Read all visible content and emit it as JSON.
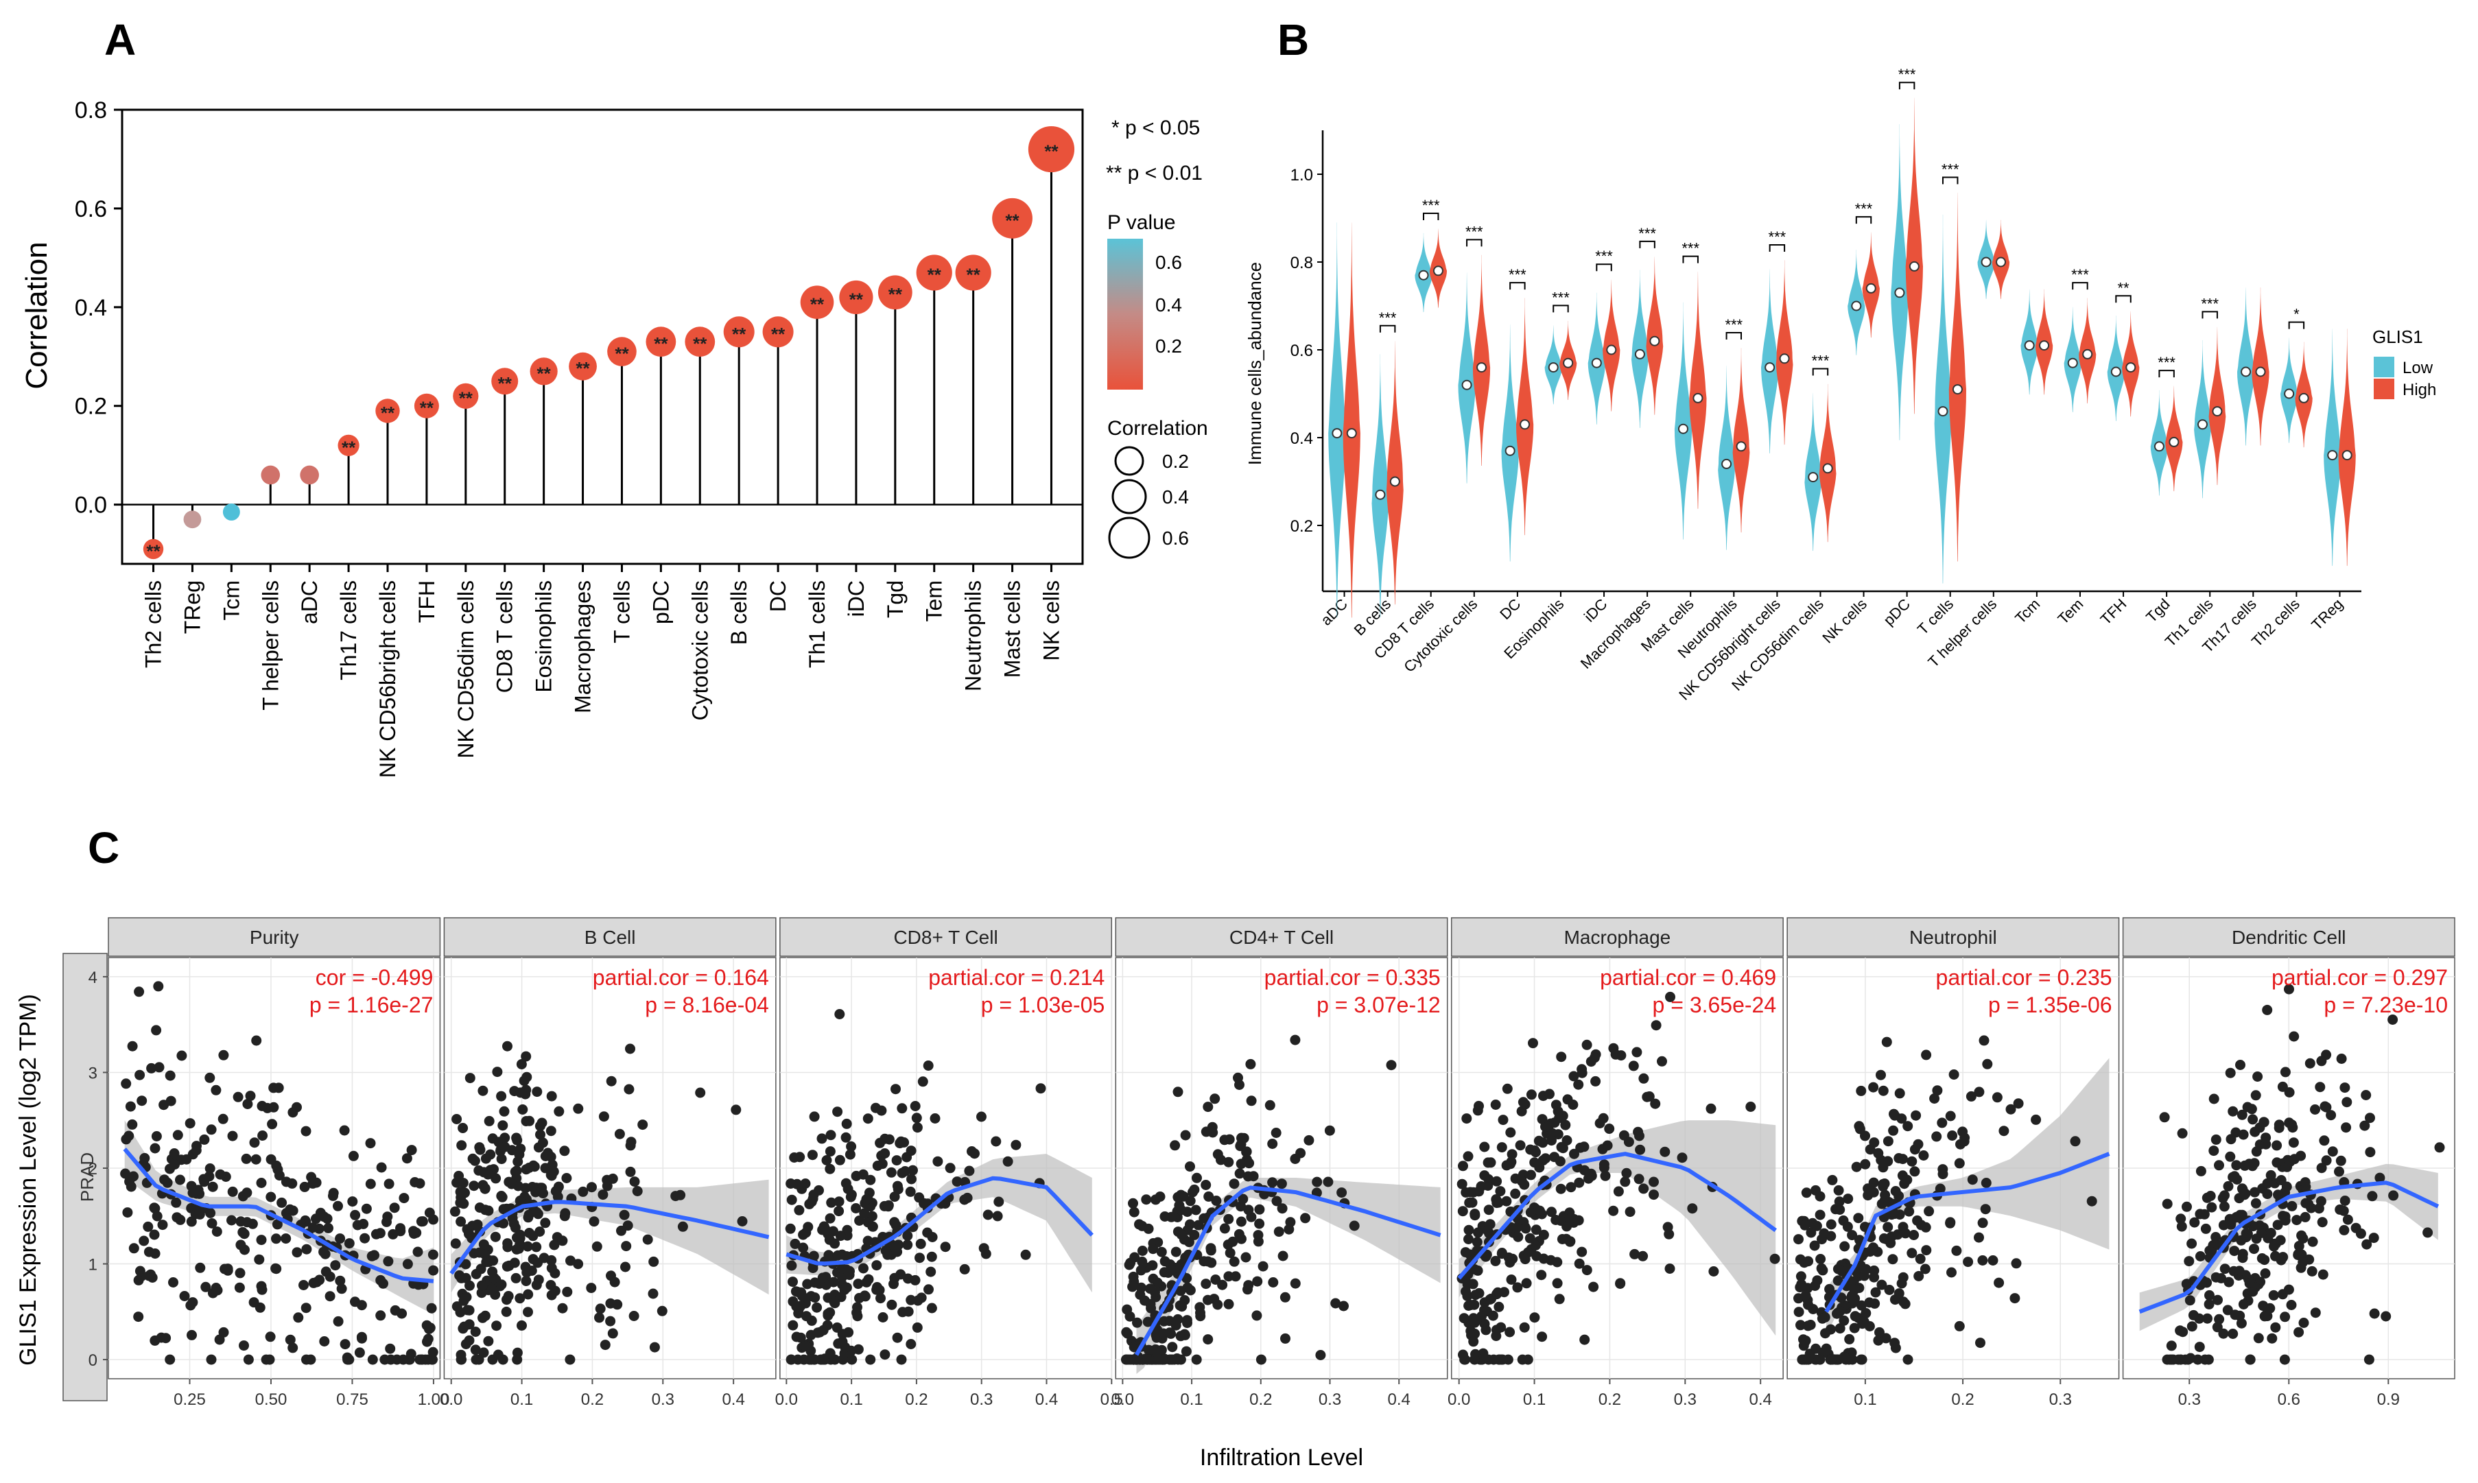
{
  "colors": {
    "high_red": "#e9523a",
    "low_blue": "#5bc3d7",
    "pval_mid": "#c48b86",
    "fit_blue": "#3366ff",
    "panel_strip": "#d9d9d9",
    "point": "#222222"
  },
  "chart_data": [
    {
      "id": "A",
      "panel_label": "A",
      "type": "lollipop",
      "ylabel": "Correlation",
      "ylim": [
        -0.12,
        0.8
      ],
      "yticks": [
        "0.0",
        "0.2",
        "0.4",
        "0.6",
        "0.8"
      ],
      "categories": [
        "Th2 cells",
        "TReg",
        "Tcm",
        "T helper cells",
        "aDC",
        "Th17 cells",
        "NK CD56bright cells",
        "TFH",
        "NK CD56dim cells",
        "CD8 T cells",
        "Eosinophils",
        "Macrophages",
        "T cells",
        "pDC",
        "Cytotoxic cells",
        "B cells",
        "DC",
        "Th1 cells",
        "iDC",
        "Tgd",
        "Tem",
        "Neutrophils",
        "Mast cells",
        "NK cells"
      ],
      "values": [
        -0.09,
        -0.03,
        -0.015,
        0.06,
        0.06,
        0.12,
        0.19,
        0.2,
        0.22,
        0.25,
        0.27,
        0.28,
        0.31,
        0.33,
        0.33,
        0.35,
        0.35,
        0.41,
        0.42,
        0.43,
        0.47,
        0.47,
        0.58,
        0.72
      ],
      "significance": [
        "**",
        "",
        "",
        "",
        "",
        "**",
        "**",
        "**",
        "**",
        "**",
        "**",
        "**",
        "**",
        "**",
        "**",
        "**",
        "**",
        "**",
        "**",
        "**",
        "**",
        "**",
        "**",
        "**"
      ],
      "point_colors": [
        "#e9523a",
        "#c49a98",
        "#4fbfd8",
        "#d0726a",
        "#d0726a",
        "#e9523a",
        "#e9523a",
        "#e9523a",
        "#e9523a",
        "#e9523a",
        "#e9523a",
        "#e9523a",
        "#e9523a",
        "#e9523a",
        "#e9523a",
        "#e9523a",
        "#e9523a",
        "#e9523a",
        "#e9523a",
        "#e9523a",
        "#e9523a",
        "#e9523a",
        "#e9523a",
        "#e9523a"
      ],
      "sig_note_1": "* p < 0.05",
      "sig_note_2": "** p < 0.01",
      "pvalue_legend": {
        "title": "P value",
        "labels": [
          "0.6",
          "0.4",
          "0.2"
        ]
      },
      "size_legend": {
        "title": "Correlation",
        "labels": [
          "0.2",
          "0.4",
          "0.6"
        ]
      }
    },
    {
      "id": "B",
      "panel_label": "B",
      "type": "split_violin",
      "ylabel": "Immune cells_abundance",
      "ylim": [
        0.05,
        1.1
      ],
      "yticks": [
        "0.2",
        "0.4",
        "0.6",
        "0.8",
        "1.0"
      ],
      "categories": [
        "aDC",
        "B cells",
        "CD8 T cells",
        "Cytotoxic cells",
        "DC",
        "Eosinophils",
        "iDC",
        "Macrophages",
        "Mast cells",
        "Neutrophils",
        "NK CD56bright cells",
        "NK CD56dim cells",
        "NK cells",
        "pDC",
        "T cells",
        "T helper cells",
        "Tcm",
        "Tem",
        "TFH",
        "Tgd",
        "Th1 cells",
        "Th17 cells",
        "Th2 cells",
        "TReg"
      ],
      "series": [
        {
          "name": "Low",
          "medians": [
            0.41,
            0.27,
            0.77,
            0.52,
            0.37,
            0.56,
            0.57,
            0.59,
            0.42,
            0.34,
            0.56,
            0.31,
            0.7,
            0.73,
            0.46,
            0.8,
            0.61,
            0.57,
            0.55,
            0.38,
            0.43,
            0.55,
            0.5,
            0.36
          ]
        },
        {
          "name": "High",
          "medians": [
            0.41,
            0.3,
            0.78,
            0.56,
            0.43,
            0.57,
            0.6,
            0.62,
            0.49,
            0.38,
            0.58,
            0.33,
            0.74,
            0.79,
            0.51,
            0.8,
            0.61,
            0.59,
            0.56,
            0.39,
            0.46,
            0.55,
            0.49,
            0.36
          ]
        }
      ],
      "spreads": [
        0.15,
        0.1,
        0.03,
        0.08,
        0.09,
        0.03,
        0.05,
        0.06,
        0.09,
        0.07,
        0.07,
        0.06,
        0.04,
        0.12,
        0.14,
        0.03,
        0.04,
        0.04,
        0.04,
        0.04,
        0.06,
        0.06,
        0.04,
        0.09
      ],
      "significance": [
        "",
        "***",
        "***",
        "***",
        "***",
        "***",
        "***",
        "***",
        "***",
        "***",
        "***",
        "***",
        "***",
        "***",
        "***",
        "",
        "",
        "***",
        "**",
        "***",
        "***",
        "",
        "*",
        ""
      ],
      "legend": {
        "title": "GLIS1",
        "labels": [
          "Low",
          "High"
        ]
      }
    },
    {
      "id": "C",
      "panel_label": "C",
      "type": "scatter",
      "xlabel": "Infiltration Level",
      "ylabel": "GLIS1 Expression Level (log2 TPM)",
      "side_strip": "PRAD",
      "ylim": [
        -0.2,
        4.2
      ],
      "yticks": [
        "0",
        "1",
        "2",
        "3",
        "4"
      ],
      "facets": [
        {
          "title": "Purity",
          "stat1": "cor = -0.499",
          "stat2": "p = 1.16e-27",
          "xlim": [
            0.0,
            1.02
          ],
          "xticks": [
            "0.25",
            "0.50",
            "0.75",
            "1.00"
          ],
          "xtick_values": [
            0.25,
            0.5,
            0.75,
            1.0
          ],
          "trend_x": [
            0.05,
            0.15,
            0.3,
            0.45,
            0.6,
            0.75,
            0.9,
            1.0
          ],
          "trend_y": [
            2.2,
            1.8,
            1.6,
            1.6,
            1.35,
            1.05,
            0.85,
            0.82
          ],
          "ci_width": [
            0.3,
            0.15,
            0.1,
            0.1,
            0.1,
            0.12,
            0.2,
            0.35
          ]
        },
        {
          "title": "B Cell",
          "stat1": "partial.cor = 0.164",
          "stat2": "p = 8.16e-04",
          "xlim": [
            -0.01,
            0.46
          ],
          "xticks": [
            "0.0",
            "0.1",
            "0.2",
            "0.3",
            "0.4"
          ],
          "xtick_values": [
            0.0,
            0.1,
            0.2,
            0.3,
            0.4
          ],
          "trend_x": [
            0.0,
            0.05,
            0.1,
            0.15,
            0.25,
            0.35,
            0.45
          ],
          "trend_y": [
            0.9,
            1.4,
            1.6,
            1.65,
            1.6,
            1.45,
            1.28
          ],
          "ci_width": [
            0.2,
            0.1,
            0.1,
            0.12,
            0.2,
            0.35,
            0.6
          ]
        },
        {
          "title": "CD8+ T Cell",
          "stat1": "partial.cor = 0.214",
          "stat2": "p = 1.03e-05",
          "xlim": [
            -0.01,
            0.5
          ],
          "xticks": [
            "0.0",
            "0.1",
            "0.2",
            "0.3",
            "0.4",
            "0.5"
          ],
          "xtick_values": [
            0.0,
            0.1,
            0.2,
            0.3,
            0.4,
            0.5
          ],
          "trend_x": [
            0.0,
            0.05,
            0.1,
            0.17,
            0.25,
            0.32,
            0.4,
            0.47
          ],
          "trend_y": [
            1.1,
            1.0,
            1.02,
            1.3,
            1.75,
            1.9,
            1.8,
            1.3
          ],
          "ci_width": [
            0.2,
            0.12,
            0.1,
            0.1,
            0.12,
            0.2,
            0.35,
            0.6
          ]
        },
        {
          "title": "CD4+ T Cell",
          "stat1": "partial.cor = 0.335",
          "stat2": "p = 3.07e-12",
          "xlim": [
            -0.01,
            0.47
          ],
          "xticks": [
            "0.0",
            "0.1",
            "0.2",
            "0.3",
            "0.4"
          ],
          "xtick_values": [
            0.0,
            0.1,
            0.2,
            0.3,
            0.4
          ],
          "trend_x": [
            0.02,
            0.08,
            0.13,
            0.18,
            0.25,
            0.35,
            0.46
          ],
          "trend_y": [
            0.05,
            0.8,
            1.5,
            1.8,
            1.75,
            1.55,
            1.3
          ],
          "ci_width": [
            0.3,
            0.15,
            0.1,
            0.1,
            0.15,
            0.3,
            0.5
          ]
        },
        {
          "title": "Macrophage",
          "stat1": "partial.cor = 0.469",
          "stat2": "p = 3.65e-24",
          "xlim": [
            -0.01,
            0.43
          ],
          "xticks": [
            "0.0",
            "0.1",
            "0.2",
            "0.3",
            "0.4"
          ],
          "xtick_values": [
            0.0,
            0.1,
            0.2,
            0.3,
            0.4
          ],
          "trend_x": [
            0.0,
            0.05,
            0.1,
            0.15,
            0.22,
            0.3,
            0.36,
            0.42
          ],
          "trend_y": [
            0.85,
            1.3,
            1.75,
            2.05,
            2.15,
            2.0,
            1.7,
            1.35
          ],
          "ci_width": [
            0.2,
            0.12,
            0.1,
            0.1,
            0.2,
            0.5,
            0.8,
            1.1
          ]
        },
        {
          "title": "Neutrophil",
          "stat1": "partial.cor = 0.235",
          "stat2": "p = 1.35e-06",
          "xlim": [
            0.02,
            0.36
          ],
          "xticks": [
            "0.1",
            "0.2",
            "0.3"
          ],
          "xtick_values": [
            0.1,
            0.2,
            0.3
          ],
          "trend_x": [
            0.06,
            0.09,
            0.11,
            0.15,
            0.2,
            0.25,
            0.3,
            0.35
          ],
          "trend_y": [
            0.5,
            1.0,
            1.5,
            1.7,
            1.75,
            1.8,
            1.95,
            2.15
          ],
          "ci_width": [
            0.25,
            0.12,
            0.1,
            0.1,
            0.15,
            0.3,
            0.6,
            1.0
          ]
        },
        {
          "title": "Dendritic Cell",
          "stat1": "partial.cor = 0.297",
          "stat2": "p = 7.23e-10",
          "xlim": [
            0.1,
            1.1
          ],
          "xticks": [
            "0.3",
            "0.6",
            "0.9"
          ],
          "xtick_values": [
            0.3,
            0.6,
            0.9
          ],
          "trend_x": [
            0.15,
            0.3,
            0.45,
            0.6,
            0.75,
            0.9,
            1.05
          ],
          "trend_y": [
            0.5,
            0.7,
            1.4,
            1.7,
            1.8,
            1.85,
            1.6
          ],
          "ci_width": [
            0.2,
            0.15,
            0.1,
            0.1,
            0.12,
            0.2,
            0.35
          ]
        }
      ]
    }
  ]
}
